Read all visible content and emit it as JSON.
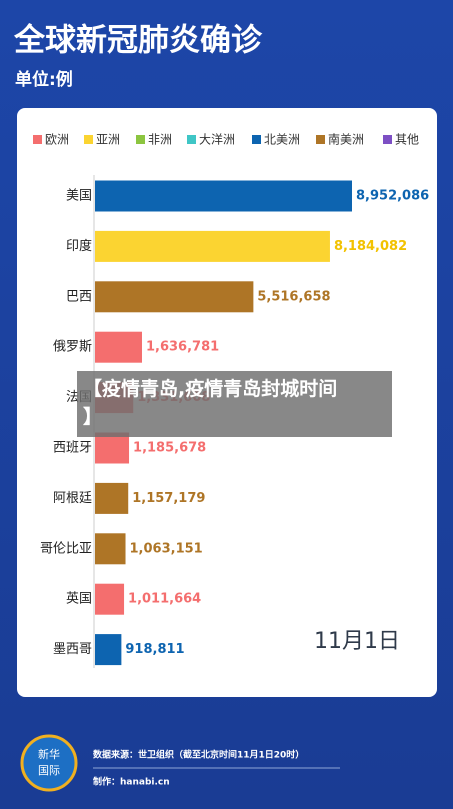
{
  "chart_data": {
    "type": "hbar",
    "title": "全球新冠肺炎确诊",
    "subtitle": "单位:例",
    "legend": [
      {
        "name": "欧洲",
        "color": "#f46e6e"
      },
      {
        "name": "亚洲",
        "color": "#fbd431"
      },
      {
        "name": "非洲",
        "color": "#8cc540"
      },
      {
        "name": "大洋洲",
        "color": "#3fc6c6"
      },
      {
        "name": "北美洲",
        "color": "#0d64b0"
      },
      {
        "name": "南美洲",
        "color": "#ae7526"
      },
      {
        "name": "其他",
        "color": "#7d4fc4"
      }
    ],
    "categories": [
      "美国",
      "印度",
      "巴西",
      "俄罗斯",
      "法国",
      "西班牙",
      "阿根廷",
      "哥伦比亚",
      "英国",
      "墨西哥"
    ],
    "values": [
      8952086,
      8184082,
      5516658,
      1636781,
      1331608,
      1185678,
      1157179,
      1063151,
      1011664,
      918811
    ],
    "value_labels": [
      "8,952,086",
      "8,184,082",
      "5,516,658",
      "1,636,781",
      "1,331,608",
      "1,185,678",
      "1,157,179",
      "1,063,151",
      "1,011,664",
      "918,811"
    ],
    "colors": [
      "#0d64b0",
      "#fbd431",
      "#ae7526",
      "#f46e6e",
      "#f46e6e",
      "#f46e6e",
      "#ae7526",
      "#ae7526",
      "#f46e6e",
      "#0d64b0"
    ],
    "date": "11月1日"
  },
  "overlay_text": [
    "【疫情青岛,疫情青岛封城时间",
    "】"
  ],
  "footer": {
    "logo": [
      "新华",
      "国际"
    ],
    "source": "数据来源：世卫组织（截至北京时间11月1日20时）",
    "credit": "制作：hanabi.cn"
  }
}
